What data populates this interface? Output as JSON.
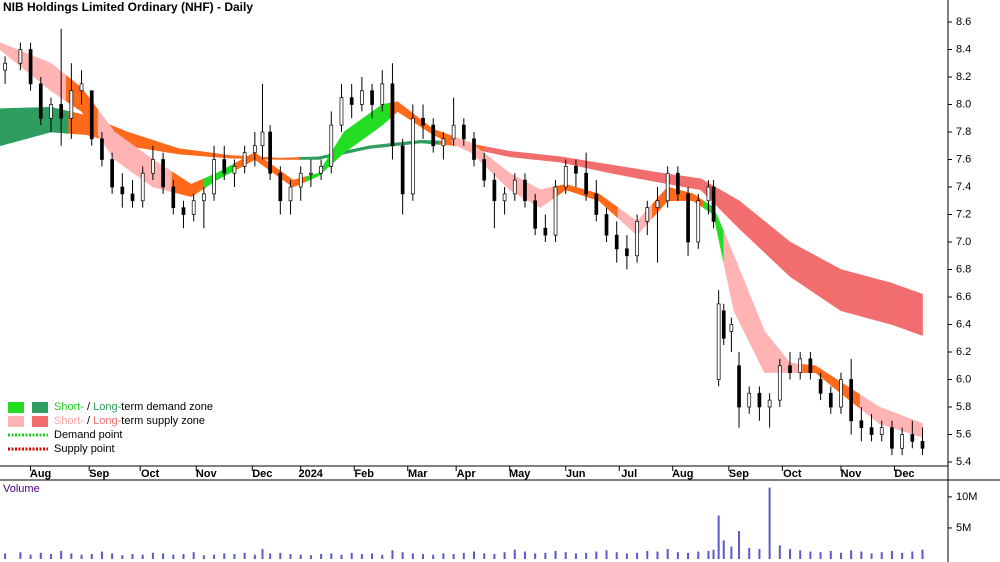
{
  "chart_data": [
    {
      "type": "candlestick",
      "title": "NIB Holdings Limited Ordinary (NHF) - Daily",
      "x": [
        2,
        8,
        12,
        16,
        20,
        24,
        28,
        32,
        36,
        40,
        44,
        48,
        52,
        56,
        60,
        64,
        68,
        72,
        76,
        80,
        84,
        88,
        92,
        96,
        100,
        103,
        106,
        110,
        114,
        118,
        122,
        126,
        130,
        134,
        138,
        142,
        146,
        150,
        154,
        158,
        162,
        166,
        170,
        174,
        178,
        182,
        186,
        190,
        194,
        198,
        202,
        206,
        210,
        214,
        218,
        222,
        226,
        230,
        234,
        238,
        242,
        246,
        250,
        254,
        258,
        262,
        266,
        270,
        274,
        278,
        280,
        282,
        284,
        287,
        290,
        294,
        298,
        302,
        306,
        310,
        314,
        318,
        322,
        326,
        330,
        334,
        338,
        342,
        346,
        350,
        354,
        358,
        362
      ],
      "open": [
        8.25,
        8.3,
        8.4,
        8.15,
        7.9,
        8.0,
        7.9,
        8.1,
        8.1,
        7.75,
        7.6,
        7.4,
        7.35,
        7.3,
        7.5,
        7.6,
        7.4,
        7.25,
        7.2,
        7.3,
        7.35,
        7.6,
        7.5,
        7.55,
        7.65,
        7.7,
        7.8,
        7.5,
        7.3,
        7.4,
        7.5,
        7.5,
        7.55,
        7.85,
        8.05,
        8.0,
        8.1,
        8.0,
        8.15,
        7.7,
        7.35,
        7.9,
        7.85,
        7.7,
        7.75,
        7.85,
        7.75,
        7.6,
        7.45,
        7.3,
        7.35,
        7.45,
        7.3,
        7.1,
        7.05,
        7.4,
        7.55,
        7.5,
        7.35,
        7.2,
        7.05,
        6.95,
        6.9,
        7.15,
        7.25,
        7.3,
        7.5,
        7.35,
        7.0,
        7.3,
        7.4,
        6.0,
        6.5,
        6.35,
        6.1,
        5.8,
        5.9,
        5.8,
        5.85,
        6.1,
        6.05,
        6.15,
        6.0,
        5.9,
        5.8,
        6.0,
        5.7,
        5.65,
        5.6,
        5.65,
        5.5,
        5.6,
        5.55
      ],
      "high": [
        8.35,
        8.45,
        8.45,
        8.2,
        8.05,
        8.55,
        8.3,
        8.25,
        8.1,
        7.8,
        7.65,
        7.5,
        7.45,
        7.55,
        7.7,
        7.65,
        7.45,
        7.3,
        7.35,
        7.4,
        7.7,
        7.7,
        7.6,
        7.7,
        7.8,
        8.15,
        7.85,
        7.55,
        7.45,
        7.55,
        7.6,
        7.6,
        7.95,
        8.15,
        8.15,
        8.2,
        8.15,
        8.25,
        8.3,
        7.75,
        8.0,
        8.0,
        7.9,
        7.8,
        8.05,
        7.9,
        7.8,
        7.65,
        7.5,
        7.4,
        7.5,
        7.5,
        7.35,
        7.2,
        7.45,
        7.6,
        7.6,
        7.65,
        7.45,
        7.25,
        7.15,
        7.05,
        7.2,
        7.3,
        7.4,
        7.55,
        7.55,
        7.4,
        7.35,
        7.45,
        7.45,
        6.65,
        6.55,
        6.45,
        6.2,
        5.95,
        5.95,
        5.9,
        6.15,
        6.2,
        6.2,
        6.2,
        6.05,
        5.95,
        6.05,
        6.15,
        5.8,
        5.75,
        5.7,
        5.7,
        5.65,
        5.7,
        5.65
      ],
      "low": [
        8.15,
        8.25,
        8.1,
        7.85,
        7.8,
        7.7,
        7.75,
        8.0,
        7.7,
        7.55,
        7.35,
        7.25,
        7.25,
        7.25,
        7.45,
        7.35,
        7.2,
        7.1,
        7.15,
        7.1,
        7.3,
        7.45,
        7.4,
        7.5,
        7.55,
        7.6,
        7.45,
        7.2,
        7.2,
        7.3,
        7.4,
        7.45,
        7.5,
        7.8,
        7.9,
        7.95,
        7.9,
        7.95,
        7.6,
        7.2,
        7.3,
        7.75,
        7.65,
        7.6,
        7.7,
        7.7,
        7.55,
        7.4,
        7.1,
        7.2,
        7.3,
        7.25,
        7.05,
        7.0,
        7.0,
        7.35,
        7.4,
        7.3,
        7.15,
        7.0,
        6.85,
        6.8,
        6.85,
        7.05,
        6.85,
        7.25,
        7.3,
        6.9,
        6.95,
        7.2,
        7.1,
        5.95,
        6.25,
        6.2,
        5.65,
        5.75,
        5.7,
        5.65,
        5.8,
        6.0,
        6.0,
        6.0,
        5.85,
        5.75,
        5.75,
        5.6,
        5.55,
        5.55,
        5.55,
        5.45,
        5.45,
        5.5,
        5.45
      ],
      "close": [
        8.3,
        8.4,
        8.15,
        7.9,
        8.0,
        7.9,
        8.1,
        8.15,
        7.75,
        7.6,
        7.4,
        7.35,
        7.3,
        7.5,
        7.6,
        7.4,
        7.25,
        7.2,
        7.3,
        7.35,
        7.6,
        7.5,
        7.55,
        7.65,
        7.7,
        7.8,
        7.5,
        7.3,
        7.4,
        7.5,
        7.5,
        7.55,
        7.85,
        8.05,
        8.0,
        8.1,
        8.0,
        8.15,
        7.7,
        7.35,
        7.9,
        7.85,
        7.7,
        7.75,
        7.85,
        7.75,
        7.6,
        7.45,
        7.3,
        7.35,
        7.45,
        7.3,
        7.1,
        7.05,
        7.4,
        7.55,
        7.5,
        7.35,
        7.2,
        7.05,
        6.95,
        6.9,
        7.15,
        7.25,
        7.3,
        7.5,
        7.35,
        7.0,
        7.3,
        7.4,
        7.15,
        6.55,
        6.3,
        6.4,
        5.8,
        5.9,
        5.8,
        5.85,
        6.1,
        6.05,
        6.15,
        6.05,
        5.9,
        5.8,
        6.0,
        5.7,
        5.65,
        5.6,
        5.65,
        5.5,
        5.6,
        5.55,
        5.5
      ],
      "long_band": {
        "x": [
          0,
          20,
          34,
          50,
          70,
          90,
          110,
          125,
          145,
          165,
          180,
          200,
          220,
          240,
          260,
          275,
          290,
          310,
          330,
          350,
          362
        ],
        "upper": [
          7.97,
          7.98,
          7.92,
          7.8,
          7.68,
          7.63,
          7.61,
          7.62,
          7.7,
          7.74,
          7.73,
          7.66,
          7.62,
          7.56,
          7.5,
          7.46,
          7.3,
          7.0,
          6.8,
          6.7,
          6.62
        ],
        "lower": [
          7.7,
          7.8,
          7.78,
          7.7,
          7.64,
          7.61,
          7.6,
          7.6,
          7.68,
          7.72,
          7.7,
          7.62,
          7.58,
          7.5,
          7.43,
          7.38,
          7.1,
          6.75,
          6.5,
          6.4,
          6.32
        ],
        "colors": [
          "#2e9e60",
          "#2e9e60",
          "#ff6a1a",
          "#ff6a1a",
          "#ff6a1a",
          "#ff6a1a",
          "#ff6a1a",
          "#2e9e60",
          "#2e9e60",
          "#2e9e60",
          "#ff6a1a",
          "#f26d6d",
          "#f26d6d",
          "#f26d6d",
          "#f26d6d",
          "#f26d6d",
          "#f26d6d",
          "#f26d6d",
          "#f26d6d",
          "#f26d6d",
          "#f26d6d"
        ]
      },
      "short_band": {
        "x": [
          0,
          20,
          32,
          45,
          60,
          75,
          85,
          100,
          115,
          125,
          135,
          150,
          156,
          170,
          185,
          200,
          212,
          222,
          235,
          250,
          262,
          272,
          280,
          288,
          300,
          310,
          320,
          330,
          345,
          362
        ],
        "upper": [
          8.45,
          8.3,
          8.12,
          7.8,
          7.6,
          7.42,
          7.5,
          7.65,
          7.45,
          7.5,
          7.8,
          8.0,
          8.02,
          7.82,
          7.72,
          7.5,
          7.38,
          7.42,
          7.35,
          7.15,
          7.4,
          7.35,
          7.25,
          6.9,
          6.35,
          6.12,
          6.1,
          5.98,
          5.8,
          5.68
        ],
        "lower": [
          8.4,
          8.1,
          7.95,
          7.6,
          7.4,
          7.33,
          7.45,
          7.6,
          7.4,
          7.48,
          7.65,
          7.85,
          7.95,
          7.78,
          7.65,
          7.38,
          7.25,
          7.38,
          7.3,
          7.05,
          7.3,
          7.3,
          7.2,
          6.5,
          6.05,
          6.05,
          6.05,
          5.9,
          5.68,
          5.58
        ],
        "colors": [
          "#ffb3b3",
          "#ffb3b3",
          "#ff6a1a",
          "#ffb3b3",
          "#ffb3b3",
          "#ff6a1a",
          "#22dd22",
          "#ff6a1a",
          "#ff6a1a",
          "#22dd22",
          "#22dd22",
          "#22dd22",
          "#ff6a1a",
          "#ff6a1a",
          "#ffb3b3",
          "#ffb3b3",
          "#ffb3b3",
          "#ff6a1a",
          "#ff6a1a",
          "#ffb3b3",
          "#ff6a1a",
          "#ff6a1a",
          "#22dd22",
          "#ffb3b3",
          "#ffb3b3",
          "#ffb3b3",
          "#ff6a1a",
          "#ff6a1a",
          "#ffb3b3",
          "#ffb3b3"
        ]
      },
      "xlim": [
        0,
        372
      ],
      "xticks": [
        {
          "value": 12,
          "label": "Aug"
        },
        {
          "value": 35,
          "label": "Sep"
        },
        {
          "value": 55,
          "label": "Oct"
        },
        {
          "value": 77,
          "label": "Nov"
        },
        {
          "value": 99,
          "label": "Dec"
        },
        {
          "value": 118,
          "label": "2024"
        },
        {
          "value": 139,
          "label": "Feb"
        },
        {
          "value": 160,
          "label": "Mar"
        },
        {
          "value": 179,
          "label": "Apr"
        },
        {
          "value": 200,
          "label": "May"
        },
        {
          "value": 222,
          "label": "Jun"
        },
        {
          "value": 243,
          "label": "Jul"
        },
        {
          "value": 264,
          "label": "Aug"
        },
        {
          "value": 286,
          "label": "Sep"
        },
        {
          "value": 307,
          "label": "Oct"
        },
        {
          "value": 330,
          "label": "Nov"
        },
        {
          "value": 351,
          "label": "Dec"
        }
      ],
      "ylim": [
        5.371,
        8.76
      ],
      "yticks": [
        8.6,
        8.4,
        8.2,
        {
          "value": 8,
          "label": "8.0"
        },
        7.8,
        7.6,
        7.4,
        7.2,
        {
          "value": 7,
          "label": "7.0"
        },
        6.8,
        6.6,
        6.4,
        6.2,
        {
          "value": 6,
          "label": "6.0"
        },
        5.8,
        5.6,
        5.4
      ],
      "legend": {
        "position": "lower left",
        "items": [
          {
            "swatches": [
              "#22dd22",
              "#2e9e60"
            ],
            "parts": [
              {
                "text": "Short-",
                "color": "#22cc22"
              },
              {
                "text": " / ",
                "color": "#000000"
              },
              {
                "text": "Long-",
                "color": "#2e9e60"
              },
              {
                "text": "term demand zone",
                "color": "#000000"
              }
            ]
          },
          {
            "swatches": [
              "#ffb3b3",
              "#f26d6d"
            ],
            "parts": [
              {
                "text": "Short-",
                "color": "#ffa0a0"
              },
              {
                "text": " / ",
                "color": "#000000"
              },
              {
                "text": "Long-",
                "color": "#f26d6d"
              },
              {
                "text": "term supply zone",
                "color": "#000000"
              }
            ]
          },
          {
            "dotted": "#22cc22",
            "parts": [
              {
                "text": "Demand point",
                "color": "#000000"
              }
            ]
          },
          {
            "dotted": "#dd0000",
            "parts": [
              {
                "text": "Supply point",
                "color": "#000000"
              }
            ]
          }
        ]
      }
    },
    {
      "type": "bar",
      "title": "Volume",
      "color": "#5a5ac8",
      "x": [
        2,
        8,
        12,
        16,
        20,
        24,
        28,
        32,
        36,
        40,
        44,
        48,
        52,
        56,
        60,
        64,
        68,
        72,
        76,
        80,
        84,
        88,
        92,
        96,
        100,
        103,
        106,
        110,
        114,
        118,
        122,
        126,
        130,
        134,
        138,
        142,
        146,
        150,
        154,
        158,
        162,
        166,
        170,
        174,
        178,
        182,
        186,
        190,
        194,
        198,
        202,
        206,
        210,
        214,
        218,
        222,
        226,
        230,
        234,
        238,
        242,
        246,
        250,
        254,
        258,
        262,
        266,
        270,
        274,
        278,
        280,
        282,
        284,
        287,
        290,
        294,
        298,
        302,
        306,
        310,
        314,
        318,
        322,
        326,
        330,
        334,
        338,
        342,
        346,
        350,
        354,
        358,
        362
      ],
      "values": [
        900000,
        1100000,
        700000,
        1000000,
        800000,
        1300000,
        900000,
        700000,
        800000,
        1200000,
        900000,
        600000,
        800000,
        700000,
        1000000,
        900000,
        700000,
        800000,
        1100000,
        600000,
        700000,
        900000,
        800000,
        1000000,
        700000,
        1600000,
        900000,
        1000000,
        800000,
        700000,
        600000,
        800000,
        900000,
        700000,
        1000000,
        800000,
        900000,
        700000,
        1400000,
        1100000,
        900000,
        800000,
        700000,
        900000,
        800000,
        1000000,
        1200000,
        900000,
        800000,
        1100000,
        1500000,
        1200000,
        900000,
        1000000,
        1300000,
        1100000,
        900000,
        1000000,
        1200000,
        1400000,
        1100000,
        900000,
        1000000,
        1300000,
        1200000,
        1600000,
        1100000,
        1000000,
        1200000,
        1300000,
        1500000,
        7000000,
        3000000,
        2000000,
        4500000,
        1800000,
        1600000,
        11500000,
        2200000,
        1600000,
        1400000,
        1200000,
        1100000,
        1300000,
        1000000,
        1400000,
        1200000,
        900000,
        1100000,
        1300000,
        1000000,
        1200000,
        1500000
      ],
      "xlim": [
        0,
        372
      ],
      "ylim": [
        0,
        12400000
      ],
      "yticks": [
        {
          "value": 10000000,
          "label": "10M"
        },
        {
          "value": 5000000,
          "label": "5M"
        }
      ]
    }
  ]
}
